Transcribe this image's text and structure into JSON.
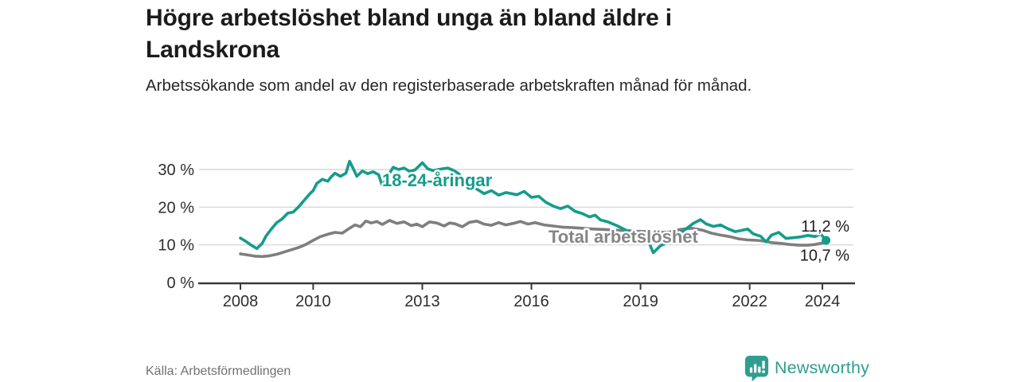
{
  "page": {
    "title": "Högre arbetslöshet bland unga än bland äldre i Landskrona",
    "subtitle": "Arbetssökande som andel av den registerbaserade arbetskraften månad för månad.",
    "source": "Källa: Arbetsförmedlingen",
    "brand": {
      "name": "Newsworthy",
      "icon": "newsworthy-bubble-chart-icon",
      "color": "#2f9e90"
    }
  },
  "chart_data": {
    "type": "line",
    "title": "Högre arbetslöshet bland unga än bland äldre i Landskrona",
    "subtitle": "Arbetssökande som andel av den registerbaserade arbetskraften månad för månad.",
    "unit": "%",
    "grid": true,
    "xlim": [
      2007.55,
      2024.95
    ],
    "ylim": [
      0,
      33.5
    ],
    "x_ticks": [
      {
        "value": 2008,
        "label": "2008"
      },
      {
        "value": 2010,
        "label": "2010"
      },
      {
        "value": 2013,
        "label": "2013"
      },
      {
        "value": 2016,
        "label": "2016"
      },
      {
        "value": 2019,
        "label": "2019"
      },
      {
        "value": 2022,
        "label": "2022"
      },
      {
        "value": 2024,
        "label": "2024"
      }
    ],
    "y_ticks": [
      {
        "value": 0,
        "label": "0 %"
      },
      {
        "value": 10,
        "label": "10 %"
      },
      {
        "value": 20,
        "label": "20 %"
      },
      {
        "value": 30,
        "label": "30 %"
      }
    ],
    "series": [
      {
        "name": "18-24-åringar",
        "color": "#149c8c",
        "end_label": "11,2 %",
        "end_value": 11.2,
        "end_dot": true,
        "points": [
          [
            2008.0,
            11.8
          ],
          [
            2008.15,
            10.9
          ],
          [
            2008.3,
            9.9
          ],
          [
            2008.45,
            9.0
          ],
          [
            2008.6,
            10.4
          ],
          [
            2008.7,
            12.3
          ],
          [
            2008.85,
            14.2
          ],
          [
            2009.0,
            15.9
          ],
          [
            2009.15,
            16.9
          ],
          [
            2009.3,
            18.4
          ],
          [
            2009.45,
            18.7
          ],
          [
            2009.6,
            20.1
          ],
          [
            2009.75,
            21.8
          ],
          [
            2009.9,
            23.5
          ],
          [
            2010.0,
            24.4
          ],
          [
            2010.1,
            26.3
          ],
          [
            2010.25,
            27.4
          ],
          [
            2010.4,
            26.9
          ],
          [
            2010.5,
            28.1
          ],
          [
            2010.6,
            29.0
          ],
          [
            2010.75,
            28.2
          ],
          [
            2010.9,
            29.0
          ],
          [
            2011.0,
            32.2
          ],
          [
            2011.1,
            30.3
          ],
          [
            2011.2,
            28.2
          ],
          [
            2011.35,
            29.6
          ],
          [
            2011.5,
            28.9
          ],
          [
            2011.65,
            29.4
          ],
          [
            2011.8,
            28.6
          ],
          [
            2011.9,
            25.7
          ],
          [
            2012.05,
            28.2
          ],
          [
            2012.2,
            30.6
          ],
          [
            2012.35,
            30.0
          ],
          [
            2012.5,
            30.4
          ],
          [
            2012.65,
            29.5
          ],
          [
            2012.8,
            29.9
          ],
          [
            2013.0,
            31.8
          ],
          [
            2013.15,
            30.2
          ],
          [
            2013.3,
            29.7
          ],
          [
            2013.5,
            30.1
          ],
          [
            2013.7,
            30.4
          ],
          [
            2013.85,
            29.8
          ],
          [
            2014.0,
            28.9
          ],
          [
            2014.15,
            27.3
          ],
          [
            2014.3,
            25.9
          ],
          [
            2014.5,
            24.8
          ],
          [
            2014.7,
            23.6
          ],
          [
            2014.9,
            24.4
          ],
          [
            2015.1,
            23.2
          ],
          [
            2015.3,
            23.9
          ],
          [
            2015.6,
            23.3
          ],
          [
            2015.8,
            24.2
          ],
          [
            2016.0,
            22.6
          ],
          [
            2016.2,
            22.9
          ],
          [
            2016.4,
            21.3
          ],
          [
            2016.6,
            20.3
          ],
          [
            2016.8,
            19.6
          ],
          [
            2017.0,
            20.3
          ],
          [
            2017.2,
            18.9
          ],
          [
            2017.4,
            18.3
          ],
          [
            2017.6,
            17.4
          ],
          [
            2017.75,
            17.9
          ],
          [
            2017.9,
            16.6
          ],
          [
            2018.1,
            16.1
          ],
          [
            2018.35,
            15.1
          ],
          [
            2018.6,
            13.9
          ],
          [
            2018.85,
            12.5
          ],
          [
            2019.1,
            11.3
          ],
          [
            2019.25,
            10.2
          ],
          [
            2019.35,
            7.9
          ],
          [
            2019.55,
            9.8
          ],
          [
            2019.7,
            10.4
          ],
          [
            2019.9,
            11.3
          ],
          [
            2020.1,
            13.2
          ],
          [
            2020.3,
            14.6
          ],
          [
            2020.45,
            15.7
          ],
          [
            2020.65,
            16.7
          ],
          [
            2020.8,
            15.6
          ],
          [
            2021.0,
            14.9
          ],
          [
            2021.2,
            15.3
          ],
          [
            2021.4,
            14.3
          ],
          [
            2021.6,
            13.5
          ],
          [
            2021.8,
            13.9
          ],
          [
            2021.95,
            14.2
          ],
          [
            2022.1,
            12.9
          ],
          [
            2022.3,
            12.3
          ],
          [
            2022.45,
            10.8
          ],
          [
            2022.6,
            12.6
          ],
          [
            2022.8,
            13.3
          ],
          [
            2023.0,
            11.7
          ],
          [
            2023.2,
            11.9
          ],
          [
            2023.4,
            12.1
          ],
          [
            2023.6,
            12.5
          ],
          [
            2023.8,
            12.2
          ],
          [
            2023.95,
            12.9
          ],
          [
            2024.1,
            11.2
          ]
        ]
      },
      {
        "name": "Total arbetslöshet",
        "color": "#7e7e7e",
        "end_label": "10,7 %",
        "end_value": 10.7,
        "end_dot": false,
        "points": [
          [
            2008.0,
            7.6
          ],
          [
            2008.2,
            7.3
          ],
          [
            2008.4,
            7.0
          ],
          [
            2008.6,
            6.9
          ],
          [
            2008.8,
            7.1
          ],
          [
            2009.0,
            7.5
          ],
          [
            2009.2,
            8.1
          ],
          [
            2009.4,
            8.7
          ],
          [
            2009.6,
            9.3
          ],
          [
            2009.8,
            10.1
          ],
          [
            2010.0,
            11.2
          ],
          [
            2010.2,
            12.2
          ],
          [
            2010.4,
            12.8
          ],
          [
            2010.6,
            13.3
          ],
          [
            2010.8,
            13.1
          ],
          [
            2011.0,
            14.4
          ],
          [
            2011.15,
            15.3
          ],
          [
            2011.3,
            14.8
          ],
          [
            2011.45,
            16.3
          ],
          [
            2011.6,
            15.8
          ],
          [
            2011.75,
            16.2
          ],
          [
            2011.9,
            15.4
          ],
          [
            2012.1,
            16.5
          ],
          [
            2012.3,
            15.7
          ],
          [
            2012.5,
            16.1
          ],
          [
            2012.7,
            15.1
          ],
          [
            2012.85,
            15.5
          ],
          [
            2013.0,
            14.8
          ],
          [
            2013.2,
            16.1
          ],
          [
            2013.4,
            15.8
          ],
          [
            2013.6,
            15.0
          ],
          [
            2013.75,
            15.8
          ],
          [
            2013.9,
            15.6
          ],
          [
            2014.1,
            14.8
          ],
          [
            2014.3,
            16.0
          ],
          [
            2014.5,
            16.3
          ],
          [
            2014.7,
            15.5
          ],
          [
            2014.9,
            15.2
          ],
          [
            2015.1,
            15.9
          ],
          [
            2015.3,
            15.3
          ],
          [
            2015.5,
            15.7
          ],
          [
            2015.7,
            16.2
          ],
          [
            2015.9,
            15.5
          ],
          [
            2016.1,
            15.9
          ],
          [
            2016.35,
            15.3
          ],
          [
            2016.6,
            15.0
          ],
          [
            2016.85,
            14.7
          ],
          [
            2017.1,
            14.6
          ],
          [
            2017.4,
            14.4
          ],
          [
            2017.7,
            14.2
          ],
          [
            2018.0,
            14.1
          ],
          [
            2018.3,
            13.9
          ],
          [
            2018.6,
            13.8
          ],
          [
            2018.9,
            13.6
          ],
          [
            2019.2,
            13.5
          ],
          [
            2019.5,
            13.3
          ],
          [
            2019.8,
            13.4
          ],
          [
            2020.1,
            14.1
          ],
          [
            2020.4,
            14.4
          ],
          [
            2020.7,
            13.9
          ],
          [
            2020.95,
            13.1
          ],
          [
            2021.2,
            12.6
          ],
          [
            2021.45,
            12.2
          ],
          [
            2021.7,
            11.6
          ],
          [
            2021.95,
            11.3
          ],
          [
            2022.2,
            11.2
          ],
          [
            2022.4,
            11.0
          ],
          [
            2022.6,
            10.6
          ],
          [
            2022.85,
            10.4
          ],
          [
            2023.1,
            10.1
          ],
          [
            2023.35,
            9.9
          ],
          [
            2023.6,
            9.9
          ],
          [
            2023.8,
            10.1
          ],
          [
            2023.95,
            10.4
          ],
          [
            2024.1,
            10.7
          ]
        ]
      }
    ]
  }
}
